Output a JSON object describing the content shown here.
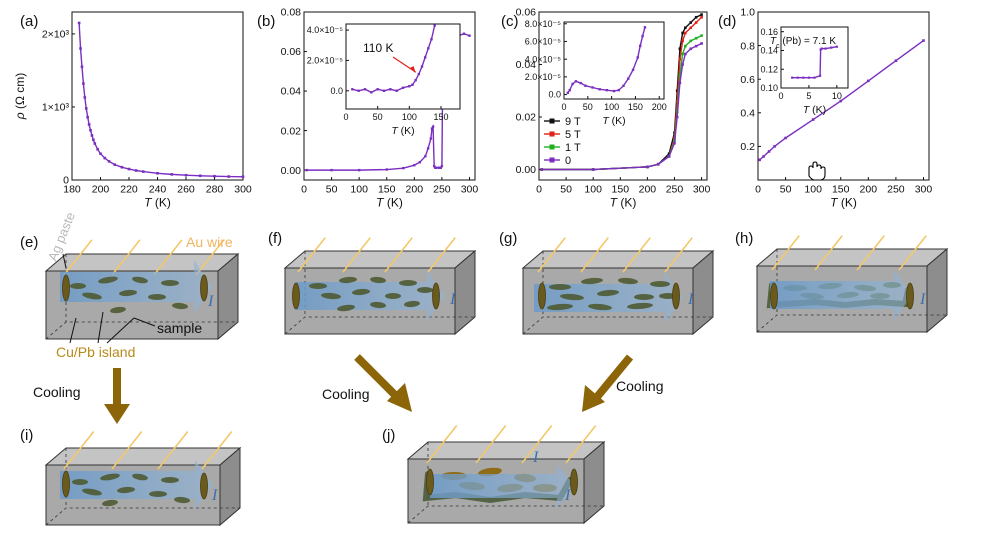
{
  "panel_labels": {
    "a": "(a)",
    "b": "(b)",
    "c": "(c)",
    "d": "(d)",
    "e": "(e)",
    "f": "(f)",
    "g": "(g)",
    "h": "(h)",
    "i": "(i)",
    "j": "(j)"
  },
  "colors": {
    "data": "#7a2fc0",
    "bar": "#8b6508",
    "wire": "#f2c86b",
    "island": "#4a5a2a",
    "box_front": "#a9a9a9",
    "box_top": "#c4c4c4",
    "box_side": "#8d8d8d",
    "current": "#6b9ac8"
  },
  "chart_data": [
    {
      "id": "a",
      "type": "line",
      "series": [
        {
          "name": "rho",
          "marker": "square"
        }
      ],
      "ylabel_sym": "ρ",
      "ylabel_unit": "(Ω cm)",
      "xlabel_sym": "T",
      "xlabel_unit": "(K)",
      "xlim": [
        180,
        300
      ],
      "ylim": [
        0,
        2300
      ],
      "xticks": [
        180,
        200,
        220,
        240,
        260,
        280,
        300
      ],
      "yticks": [
        {
          "v": 0,
          "t": "0"
        },
        {
          "v": 1000,
          "t": "1×10³"
        },
        {
          "v": 2000,
          "t": "2×10³"
        }
      ],
      "x": [
        185,
        186,
        187,
        188,
        189,
        190,
        191,
        192,
        193,
        194,
        195,
        196,
        198,
        200,
        203,
        206,
        210,
        215,
        220,
        225,
        230,
        240,
        250,
        260,
        270,
        280,
        290,
        300
      ],
      "y": [
        2150,
        1800,
        1550,
        1320,
        1130,
        980,
        860,
        760,
        680,
        610,
        550,
        500,
        420,
        360,
        300,
        255,
        210,
        175,
        150,
        130,
        115,
        92,
        77,
        66,
        58,
        52,
        47,
        44
      ]
    },
    {
      "id": "b",
      "type": "line",
      "series": [
        {
          "name": "rho_b"
        }
      ],
      "xlabel_sym": "T",
      "xlabel_unit": "(K)",
      "xlim": [
        0,
        310
      ],
      "ylim": [
        -0.005,
        0.08
      ],
      "xticks": [
        0,
        50,
        100,
        150,
        200,
        250,
        300
      ],
      "yticks": [
        {
          "v": 0,
          "t": "0.00"
        },
        {
          "v": 0.02,
          "t": "0.02"
        },
        {
          "v": 0.04,
          "t": "0.04"
        },
        {
          "v": 0.06,
          "t": "0.06"
        },
        {
          "v": 0.08,
          "t": "0.08"
        }
      ],
      "x": [
        5,
        50,
        100,
        150,
        180,
        200,
        210,
        220,
        225,
        230,
        232,
        234,
        236,
        238,
        240,
        245,
        248,
        250,
        252,
        255,
        260,
        270,
        280,
        290,
        300
      ],
      "y": [
        0,
        0,
        0,
        0.0003,
        0.001,
        0.0025,
        0.004,
        0.007,
        0.011,
        0.016,
        0.021,
        0.022,
        0.002,
        0.0012,
        0.0012,
        0.0012,
        0.0012,
        0.002,
        0.066,
        0.069,
        0.068,
        0.069,
        0.068,
        0.069,
        0.068
      ],
      "inset": {
        "xlim": [
          0,
          180
        ],
        "ylim": [
          -1.2e-05,
          4.4e-05
        ],
        "xticks": [
          0,
          50,
          100,
          150
        ],
        "yticks": [
          {
            "v": 0,
            "t": "0.0"
          },
          {
            "v": 2e-05,
            "t": "2.0×10⁻⁵"
          },
          {
            "v": 4e-05,
            "t": "4.0×10⁻⁵"
          }
        ],
        "x": [
          10,
          20,
          30,
          40,
          50,
          60,
          70,
          80,
          90,
          100,
          105,
          110,
          115,
          120,
          125,
          130,
          135,
          140
        ],
        "y": [
          1e-06,
          0,
          1e-06,
          -1e-06,
          1e-06,
          0,
          1e-06,
          0,
          2e-06,
          3e-06,
          4e-06,
          7e-06,
          1.1e-05,
          1.6e-05,
          2.2e-05,
          2.8e-05,
          3.4e-05,
          4.3e-05
        ],
        "xlabel_sym": "T",
        "xlabel_unit": "(K)",
        "annotation": "110 K"
      }
    },
    {
      "id": "c",
      "type": "line",
      "xlabel_sym": "T",
      "xlabel_unit": "(K)",
      "xlim": [
        0,
        310
      ],
      "ylim": [
        -0.004,
        0.06
      ],
      "xticks": [
        0,
        50,
        100,
        150,
        200,
        250,
        300
      ],
      "yticks": [
        {
          "v": 0,
          "t": "0.00"
        },
        {
          "v": 0.02,
          "t": "0.02"
        },
        {
          "v": 0.04,
          "t": "0.04"
        },
        {
          "v": 0.06,
          "t": "0.06"
        }
      ],
      "series": [
        {
          "name": "9 T",
          "color": "#111111",
          "x": [
            5,
            100,
            200,
            220,
            240,
            250,
            255,
            260,
            265,
            270,
            280,
            290,
            300
          ],
          "y": [
            0,
            0,
            0.001,
            0.002,
            0.006,
            0.014,
            0.03,
            0.046,
            0.052,
            0.054,
            0.056,
            0.058,
            0.059
          ]
        },
        {
          "name": "5 T",
          "color": "#e0221a",
          "x": [
            5,
            100,
            200,
            220,
            240,
            250,
            255,
            260,
            265,
            270,
            280,
            290,
            300
          ],
          "y": [
            0,
            0,
            0.001,
            0.002,
            0.005,
            0.012,
            0.026,
            0.042,
            0.049,
            0.052,
            0.054,
            0.056,
            0.058
          ]
        },
        {
          "name": "1 T",
          "color": "#22b022",
          "x": [
            5,
            100,
            200,
            220,
            240,
            250,
            255,
            260,
            265,
            270,
            280,
            290,
            300
          ],
          "y": [
            0,
            0,
            0.001,
            0.002,
            0.005,
            0.011,
            0.022,
            0.036,
            0.044,
            0.047,
            0.049,
            0.05,
            0.051
          ]
        },
        {
          "name": "0",
          "color": "#7a2fc0",
          "x": [
            5,
            100,
            200,
            220,
            240,
            250,
            255,
            260,
            265,
            270,
            280,
            290,
            300
          ],
          "y": [
            0,
            0,
            0.001,
            0.002,
            0.005,
            0.01,
            0.02,
            0.033,
            0.04,
            0.044,
            0.046,
            0.047,
            0.048
          ]
        }
      ],
      "inset": {
        "xlim": [
          0,
          210
        ],
        "ylim": [
          -5e-06,
          8.2e-05
        ],
        "xticks": [
          0,
          50,
          100,
          150,
          200
        ],
        "yticks": [
          {
            "v": 0,
            "t": "0.0"
          },
          {
            "v": 2e-05,
            "t": "2.0×10⁻⁵"
          },
          {
            "v": 4e-05,
            "t": "4.0×10⁻⁵"
          },
          {
            "v": 6e-05,
            "t": "6.0×10⁻⁵"
          },
          {
            "v": 8e-05,
            "t": "8.0×10⁻⁵"
          }
        ],
        "x": [
          8,
          12,
          18,
          25,
          35,
          45,
          60,
          75,
          90,
          105,
          115,
          125,
          135,
          145,
          155,
          160,
          165,
          170
        ],
        "y": [
          2e-06,
          5e-06,
          1.2e-05,
          1.5e-05,
          1.3e-05,
          1e-05,
          8e-06,
          6e-06,
          5e-06,
          4e-06,
          5e-06,
          1e-05,
          1.8e-05,
          2.8e-05,
          4.2e-05,
          5.5e-05,
          6.6e-05,
          7.6e-05
        ],
        "xlabel_sym": "T",
        "xlabel_unit": "(K)"
      }
    },
    {
      "id": "d",
      "type": "line",
      "xlabel_sym": "T",
      "xlabel_unit": "(K)",
      "xlim": [
        0,
        310
      ],
      "ylim": [
        0,
        1.0
      ],
      "xticks": [
        0,
        50,
        100,
        150,
        200,
        250,
        300
      ],
      "yticks": [
        {
          "v": 0.2,
          "t": "0.2"
        },
        {
          "v": 0.4,
          "t": "0.4"
        },
        {
          "v": 0.6,
          "t": "0.6"
        },
        {
          "v": 0.8,
          "t": "0.8"
        },
        {
          "v": 1.0,
          "t": "1.0"
        }
      ],
      "x": [
        3,
        10,
        20,
        30,
        50,
        100,
        150,
        200,
        250,
        300
      ],
      "y": [
        0.12,
        0.14,
        0.17,
        0.2,
        0.25,
        0.36,
        0.47,
        0.59,
        0.71,
        0.83
      ],
      "inset": {
        "xlim": [
          0,
          12
        ],
        "ylim": [
          0.1,
          0.165
        ],
        "xticks": [
          0,
          5,
          10
        ],
        "yticks": [
          {
            "v": 0.1,
            "t": "0.10"
          },
          {
            "v": 0.12,
            "t": "0.12"
          },
          {
            "v": 0.14,
            "t": "0.14"
          },
          {
            "v": 0.16,
            "t": "0.16"
          }
        ],
        "x": [
          2,
          3,
          4,
          5,
          6,
          7,
          7.1,
          7.3,
          8,
          9,
          10
        ],
        "y": [
          0.111,
          0.111,
          0.111,
          0.111,
          0.111,
          0.113,
          0.141,
          0.142,
          0.142,
          0.143,
          0.144
        ],
        "xlabel_sym": "T",
        "xlabel_unit": "(K)",
        "annotation_sym": "T",
        "annotation_sub": "c",
        "annotation_rest": " (Pb) = 7.1 K"
      }
    }
  ],
  "schematic": {
    "ag_paste": "Ag paste",
    "au_wire": "Au wire",
    "sample": "sample",
    "island": "Cu/Pb island",
    "current": "I",
    "cooling": "Cooling"
  }
}
